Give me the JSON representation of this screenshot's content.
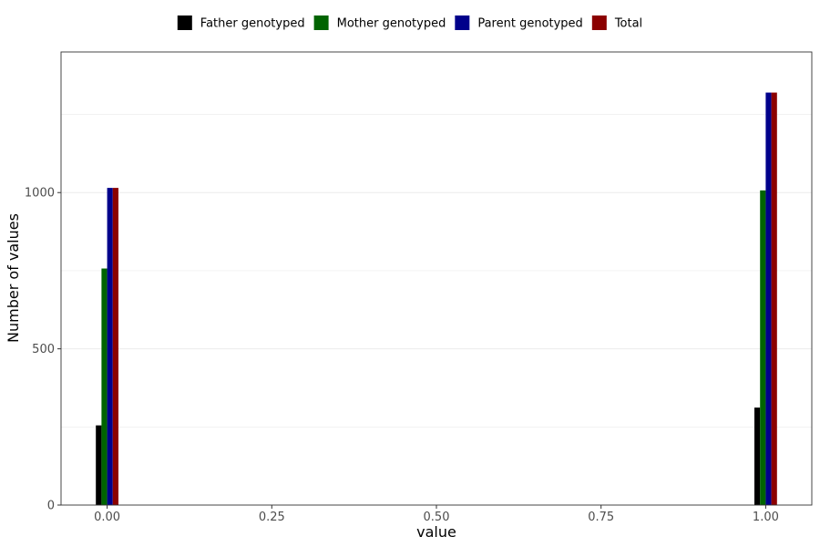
{
  "chart_data": {
    "type": "bar",
    "title": "",
    "xlabel": "value",
    "ylabel": "Number of values",
    "x": [
      0,
      1
    ],
    "series": [
      {
        "name": "Father genotyped",
        "color": "#000000",
        "values": [
          255,
          312
        ]
      },
      {
        "name": "Mother genotyped",
        "color": "#006400",
        "values": [
          757,
          1007
        ]
      },
      {
        "name": "Parent genotyped",
        "color": "#00008B",
        "values": [
          1015,
          1320
        ]
      },
      {
        "name": "Total",
        "color": "#8B0000",
        "values": [
          1015,
          1320
        ]
      }
    ],
    "xlim": [
      -0.07,
      1.07
    ],
    "ylim": [
      0,
      1450
    ],
    "xticks": [
      0,
      0.25,
      0.5,
      0.75,
      1
    ],
    "xtick_labels": [
      "0.00",
      "0.25",
      "0.50",
      "0.75",
      "1.00"
    ],
    "yticks": [
      0,
      500,
      1000
    ],
    "ytick_labels": [
      "0",
      "500",
      "1000"
    ],
    "y_minor_gridlines": [
      250,
      750,
      1250
    ],
    "grid": true,
    "legend_position": "top"
  }
}
